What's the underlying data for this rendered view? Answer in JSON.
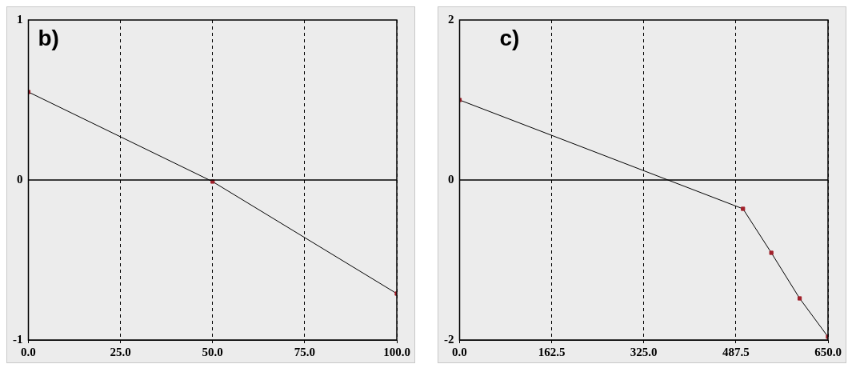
{
  "chart_data": [
    {
      "type": "line",
      "annotations": [
        "b)"
      ],
      "x": [
        0,
        50,
        100
      ],
      "series": [
        {
          "color": "#000000",
          "colors": [
            "#a0202a",
            "#a0202a",
            "#a0202a"
          ],
          "values": [
            0.55,
            -0.01,
            -0.71
          ]
        }
      ],
      "xlim": [
        0,
        100
      ],
      "xticks": [
        {
          "value": 0,
          "label": "0.0"
        },
        {
          "value": 25,
          "label": "25.0"
        },
        {
          "value": 50,
          "label": "50.0"
        },
        {
          "value": 75,
          "label": "75.0"
        },
        {
          "value": 100,
          "label": "100.0"
        }
      ],
      "ylim": [
        -1,
        1
      ],
      "yticks": [
        -1,
        0,
        1
      ],
      "grid": "x",
      "marker": "square",
      "legend": false,
      "ref_lines": [
        {
          "axis": "y",
          "value": 0,
          "color": "#000000"
        }
      ]
    },
    {
      "type": "line",
      "annotations": [
        "c)"
      ],
      "x": [
        0,
        500,
        550,
        600,
        650
      ],
      "series": [
        {
          "color": "#000000",
          "colors": [
            "#a0202a",
            "#a0202a",
            "#a0202a",
            "#a0202a",
            "#a0202a"
          ],
          "values": [
            1.0,
            -0.36,
            -0.91,
            -1.48,
            -1.96
          ]
        }
      ],
      "xlim": [
        0,
        650
      ],
      "xticks": [
        {
          "value": 0,
          "label": "0.0"
        },
        162.5,
        {
          "value": 325,
          "label": "325.0"
        },
        487.5,
        {
          "value": 650,
          "label": "650.0"
        }
      ],
      "ylim": [
        -2,
        2
      ],
      "yticks": [
        -2,
        0,
        2
      ],
      "grid": "x",
      "marker": "square",
      "legend": false,
      "ref_lines": [
        {
          "axis": "y",
          "value": 0,
          "color": "#000000"
        }
      ]
    }
  ]
}
